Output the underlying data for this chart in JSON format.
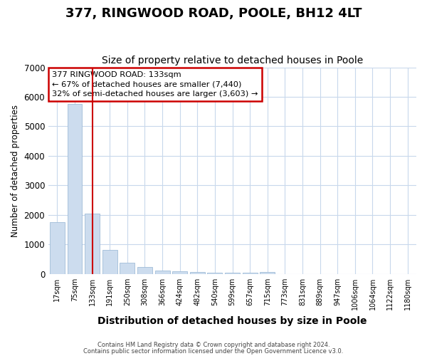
{
  "title": "377, RINGWOOD ROAD, POOLE, BH12 4LT",
  "subtitle": "Size of property relative to detached houses in Poole",
  "xlabel": "Distribution of detached houses by size in Poole",
  "ylabel": "Number of detached properties",
  "categories": [
    "17sqm",
    "75sqm",
    "133sqm",
    "191sqm",
    "250sqm",
    "308sqm",
    "366sqm",
    "424sqm",
    "482sqm",
    "540sqm",
    "599sqm",
    "657sqm",
    "715sqm",
    "773sqm",
    "831sqm",
    "889sqm",
    "947sqm",
    "1006sqm",
    "1064sqm",
    "1122sqm",
    "1180sqm"
  ],
  "values": [
    1750,
    5750,
    2050,
    820,
    370,
    230,
    110,
    90,
    70,
    50,
    45,
    35,
    75,
    0,
    0,
    0,
    0,
    0,
    0,
    0,
    0
  ],
  "bar_color": "#ccdcee",
  "bar_edge_color": "#a0bcd8",
  "highlight_index": 2,
  "highlight_color": "#cc0000",
  "ylim": [
    0,
    7000
  ],
  "yticks": [
    0,
    1000,
    2000,
    3000,
    4000,
    5000,
    6000,
    7000
  ],
  "annotation_text": "377 RINGWOOD ROAD: 133sqm\n← 67% of detached houses are smaller (7,440)\n32% of semi-detached houses are larger (3,603) →",
  "annotation_box_color": "#ffffff",
  "annotation_box_edge": "#cc0000",
  "footer_line1": "Contains HM Land Registry data © Crown copyright and database right 2024.",
  "footer_line2": "Contains public sector information licensed under the Open Government Licence v3.0.",
  "grid_color": "#c8d8ec",
  "background_color": "#ffffff",
  "title_fontsize": 13,
  "subtitle_fontsize": 10
}
